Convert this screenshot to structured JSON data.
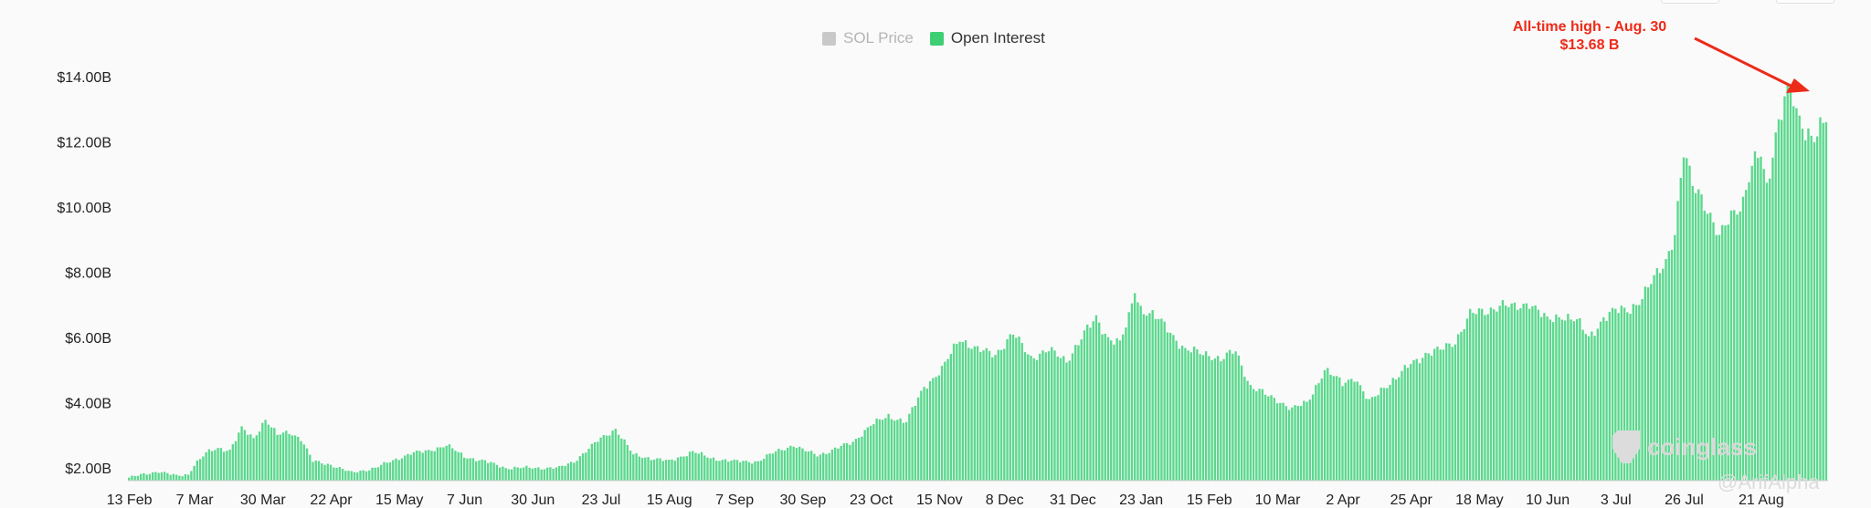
{
  "legend": {
    "items": [
      {
        "label": "SOL Price",
        "color": "#c9c9c9",
        "active": false
      },
      {
        "label": "Open Interest",
        "color": "#3ecf74",
        "active": true
      }
    ]
  },
  "annotation": {
    "line1": "All-time high - Aug. 30",
    "line2": "$13.68 B",
    "color": "#ee2a18"
  },
  "watermark": {
    "text": "coinglass"
  },
  "author": {
    "text": "@ArifAlpha"
  },
  "chart_data": {
    "type": "bar",
    "series": [
      {
        "name": "Open Interest",
        "color": "#5ad88c"
      }
    ],
    "y_ticks": [
      "$2.00B",
      "$4.00B",
      "$6.00B",
      "$8.00B",
      "$10.00B",
      "$12.00B",
      "$14.00B"
    ],
    "y_tick_values": [
      2,
      4,
      6,
      8,
      10,
      12,
      14
    ],
    "ylim": [
      1.6,
      14.4
    ],
    "x_ticks": [
      "13 Feb",
      "7 Mar",
      "30 Mar",
      "22 Apr",
      "15 May",
      "7 Jun",
      "30 Jun",
      "23 Jul",
      "15 Aug",
      "7 Sep",
      "30 Sep",
      "23 Oct",
      "15 Nov",
      "8 Dec",
      "31 Dec",
      "23 Jan",
      "15 Feb",
      "10 Mar",
      "2 Apr",
      "25 Apr",
      "18 May",
      "10 Jun",
      "3 Jul",
      "26 Jul",
      "21 Aug"
    ],
    "x_tick_index": [
      0,
      22,
      45,
      68,
      91,
      113,
      136,
      159,
      182,
      204,
      227,
      250,
      273,
      295,
      318,
      341,
      364,
      387,
      409,
      432,
      455,
      478,
      501,
      524,
      550
    ],
    "anchors": [
      [
        0,
        1.7
      ],
      [
        10,
        1.9
      ],
      [
        16,
        1.75
      ],
      [
        20,
        1.8
      ],
      [
        22,
        2.1
      ],
      [
        26,
        2.45
      ],
      [
        30,
        2.6
      ],
      [
        34,
        2.55
      ],
      [
        38,
        3.2
      ],
      [
        42,
        2.9
      ],
      [
        46,
        3.5
      ],
      [
        50,
        3.0
      ],
      [
        54,
        3.1
      ],
      [
        58,
        2.9
      ],
      [
        62,
        2.2
      ],
      [
        68,
        2.1
      ],
      [
        75,
        1.85
      ],
      [
        83,
        2.0
      ],
      [
        91,
        2.3
      ],
      [
        95,
        2.45
      ],
      [
        100,
        2.5
      ],
      [
        107,
        2.7
      ],
      [
        113,
        2.35
      ],
      [
        120,
        2.2
      ],
      [
        127,
        2.0
      ],
      [
        136,
        2.0
      ],
      [
        145,
        2.0
      ],
      [
        150,
        2.2
      ],
      [
        159,
        2.9
      ],
      [
        164,
        3.2
      ],
      [
        170,
        2.4
      ],
      [
        176,
        2.3
      ],
      [
        182,
        2.2
      ],
      [
        190,
        2.5
      ],
      [
        196,
        2.3
      ],
      [
        204,
        2.2
      ],
      [
        212,
        2.2
      ],
      [
        218,
        2.5
      ],
      [
        224,
        2.7
      ],
      [
        227,
        2.55
      ],
      [
        232,
        2.4
      ],
      [
        236,
        2.5
      ],
      [
        244,
        2.8
      ],
      [
        250,
        3.3
      ],
      [
        256,
        3.6
      ],
      [
        262,
        3.4
      ],
      [
        268,
        4.5
      ],
      [
        274,
        5.0
      ],
      [
        280,
        6.0
      ],
      [
        286,
        5.6
      ],
      [
        292,
        5.5
      ],
      [
        298,
        6.1
      ],
      [
        304,
        5.4
      ],
      [
        310,
        5.6
      ],
      [
        316,
        5.3
      ],
      [
        322,
        6.1
      ],
      [
        326,
        6.6
      ],
      [
        330,
        6.0
      ],
      [
        334,
        5.8
      ],
      [
        337,
        6.6
      ],
      [
        339,
        7.5
      ],
      [
        341,
        6.9
      ],
      [
        346,
        6.6
      ],
      [
        350,
        6.3
      ],
      [
        356,
        5.6
      ],
      [
        364,
        5.5
      ],
      [
        368,
        5.3
      ],
      [
        373,
        5.6
      ],
      [
        378,
        4.5
      ],
      [
        384,
        4.2
      ],
      [
        387,
        4.1
      ],
      [
        392,
        3.8
      ],
      [
        397,
        4.0
      ],
      [
        403,
        5.0
      ],
      [
        409,
        4.6
      ],
      [
        413,
        4.8
      ],
      [
        418,
        4.0
      ],
      [
        423,
        4.5
      ],
      [
        428,
        4.8
      ],
      [
        432,
        5.2
      ],
      [
        437,
        5.5
      ],
      [
        442,
        5.6
      ],
      [
        447,
        5.9
      ],
      [
        452,
        6.7
      ],
      [
        457,
        6.8
      ],
      [
        462,
        7.0
      ],
      [
        467,
        6.9
      ],
      [
        472,
        7.1
      ],
      [
        478,
        6.5
      ],
      [
        483,
        6.7
      ],
      [
        488,
        6.5
      ],
      [
        492,
        6.0
      ],
      [
        497,
        6.6
      ],
      [
        501,
        6.8
      ],
      [
        506,
        6.9
      ],
      [
        510,
        7.2
      ],
      [
        514,
        7.8
      ],
      [
        518,
        8.4
      ],
      [
        521,
        9.2
      ],
      [
        524,
        11.6
      ],
      [
        527,
        10.7
      ],
      [
        530,
        10.4
      ],
      [
        533,
        9.7
      ],
      [
        536,
        9.0
      ],
      [
        540,
        9.8
      ],
      [
        544,
        10.2
      ],
      [
        547,
        11.2
      ],
      [
        550,
        11.6
      ],
      [
        552,
        10.6
      ],
      [
        555,
        12.3
      ],
      [
        558,
        13.3
      ],
      [
        560,
        13.68
      ],
      [
        562,
        12.8
      ],
      [
        565,
        12.4
      ],
      [
        568,
        12.2
      ],
      [
        572,
        12.6
      ]
    ],
    "bar_count": 573
  }
}
